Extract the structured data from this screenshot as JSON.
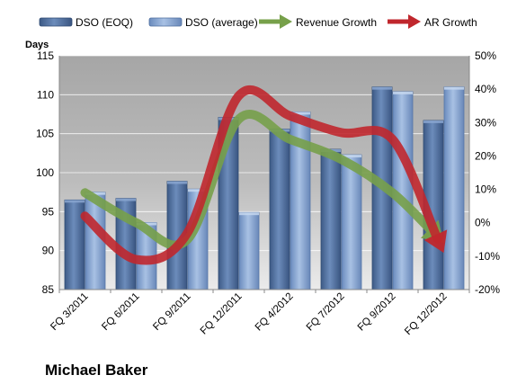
{
  "chart_data": {
    "type": "bar",
    "categories": [
      "FQ 3/2011",
      "FQ 6/2011",
      "FQ 9/2011",
      "FQ 12/2011",
      "FQ 4/2012",
      "FQ 7/2012",
      "FQ 9/2012",
      "FQ 12/2012"
    ],
    "series": [
      {
        "name": "DSO (EOQ)",
        "kind": "bar",
        "axis": "left",
        "color": "#4f6f9f",
        "values": [
          96.5,
          96.7,
          98.9,
          107.1,
          105.6,
          103.0,
          111.0,
          106.7
        ]
      },
      {
        "name": "DSO (average)",
        "kind": "bar",
        "axis": "left",
        "color": "#7f9fcf",
        "values": [
          97.5,
          93.6,
          97.9,
          94.9,
          107.8,
          102.3,
          110.4,
          111.0
        ]
      },
      {
        "name": "Revenue Growth",
        "kind": "line-arrow",
        "axis": "right",
        "color": "#77a04a",
        "values": [
          9,
          0,
          -5,
          31,
          25,
          19,
          9,
          -6
        ]
      },
      {
        "name": "AR Growth",
        "kind": "line-arrow",
        "axis": "right",
        "color": "#c0272d",
        "values": [
          2,
          -11,
          -3,
          38,
          32,
          27,
          25,
          -9
        ]
      }
    ],
    "y_left": {
      "label": "Days",
      "min": 85,
      "max": 115,
      "step": 5,
      "ticks": [
        "85",
        "90",
        "95",
        "100",
        "105",
        "110",
        "115"
      ]
    },
    "y_right": {
      "min": -20,
      "max": 50,
      "step": 10,
      "ticks": [
        "-20%",
        "-10%",
        "0%",
        "10%",
        "20%",
        "30%",
        "40%",
        "50%"
      ]
    },
    "grid": true,
    "legend_position": "top",
    "company": "Michael Baker",
    "colors": {
      "plot_bg_top": "#a0a0a0",
      "plot_bg_bottom": "#e8e8e8",
      "grid": "#ffffff"
    }
  }
}
